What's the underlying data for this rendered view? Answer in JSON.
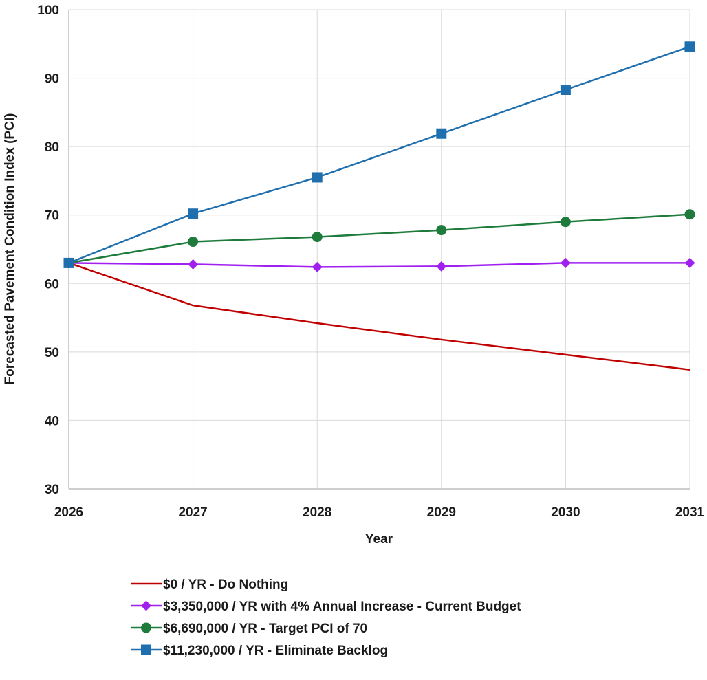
{
  "chart_data": {
    "type": "line",
    "xlabel": "Year",
    "ylabel": "Forecasted Pavement Condition Index (PCI)",
    "x": [
      2026,
      2027,
      2028,
      2029,
      2030,
      2031
    ],
    "xlim": [
      2026,
      2031
    ],
    "ylim": [
      30,
      100
    ],
    "y_ticks": [
      30,
      40,
      50,
      60,
      70,
      80,
      90,
      100
    ],
    "grid": true,
    "legend_position": "bottom",
    "series": [
      {
        "name": "$0 / YR - Do Nothing",
        "values": [
          63,
          56.8,
          54.2,
          51.8,
          49.6,
          47.4
        ],
        "color": "#c00000",
        "marker": "none"
      },
      {
        "name": "$3,350,000 / YR with 4% Annual Increase - Current Budget",
        "values": [
          63,
          62.8,
          62.4,
          62.5,
          63,
          63
        ],
        "color": "#a020f0",
        "marker": "diamond"
      },
      {
        "name": "$6,690,000 / YR - Target PCI of 70",
        "values": [
          63,
          66.1,
          66.8,
          67.8,
          69,
          70.1
        ],
        "color": "#1e7b3c",
        "marker": "circle"
      },
      {
        "name": "$11,230,000 / YR - Eliminate Backlog",
        "values": [
          63,
          70.2,
          75.5,
          81.9,
          88.3,
          94.6
        ],
        "color": "#1f6fae",
        "marker": "square"
      }
    ]
  }
}
